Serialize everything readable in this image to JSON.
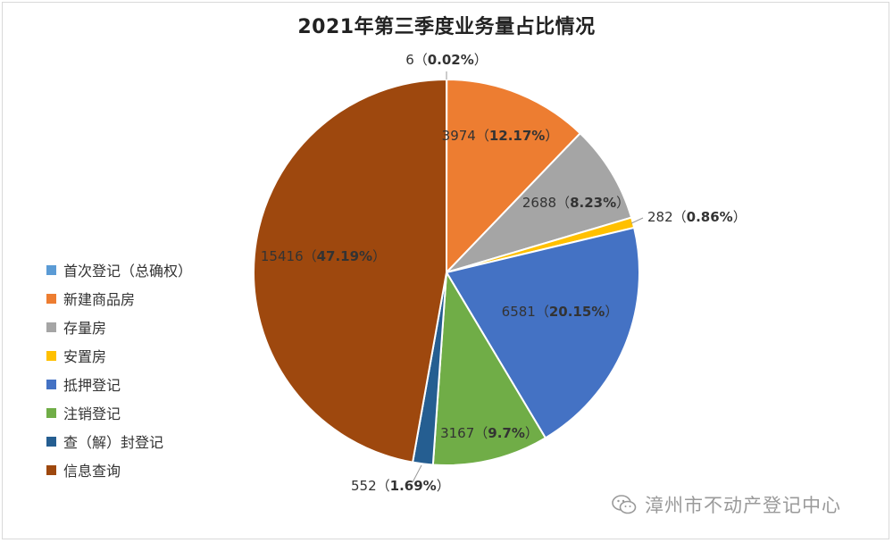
{
  "chart_data": {
    "type": "pie",
    "title": "2021年第三季度业务量占比情况",
    "slices": [
      {
        "name": "首次登记（总确权）",
        "value": 6,
        "percent_label": "0.02%",
        "color": "#5B9BD5"
      },
      {
        "name": "新建商品房",
        "value": 3974,
        "percent_label": "12.17%",
        "color": "#ED7D31"
      },
      {
        "name": "存量房",
        "value": 2688,
        "percent_label": "8.23%",
        "color": "#A5A5A5"
      },
      {
        "name": "安置房",
        "value": 282,
        "percent_label": "0.86%",
        "color": "#FFC000"
      },
      {
        "name": "抵押登记",
        "value": 6581,
        "percent_label": "20.15%",
        "color": "#4472C4"
      },
      {
        "name": "注销登记",
        "value": 3167,
        "percent_label": "9.7%",
        "color": "#70AD47"
      },
      {
        "name": "查（解）封登记",
        "value": 552,
        "percent_label": "1.69%",
        "color": "#255E91"
      },
      {
        "name": "信息查询",
        "value": 15416,
        "percent_label": "47.19%",
        "color": "#9E480E"
      }
    ],
    "legend_position": "left"
  },
  "watermark": {
    "text": "漳州市不动产登记中心",
    "icon": "wechat-icon"
  }
}
